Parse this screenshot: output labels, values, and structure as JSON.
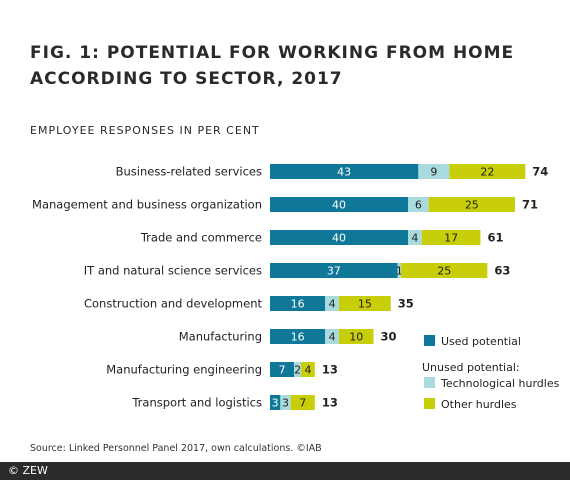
{
  "title": "FIG. 1: POTENTIAL FOR WORKING FROM HOME ACCORDING TO SECTOR, 2017",
  "subtitle": "EMPLOYEE RESPONSES IN PER CENT",
  "source": "Source: Linked Personnel Panel 2017, own calculations. ©IAB",
  "footer": "© ZEW",
  "legend": {
    "used": "Used potential",
    "unused_header": "Unused potential:",
    "tech": "Technological hurdles",
    "other": "Other hurdles"
  },
  "colors": {
    "used": "#0f7898",
    "tech": "#a9dbde",
    "other": "#c8cf0a"
  },
  "chart_data": {
    "type": "bar",
    "orientation": "horizontal",
    "stacked": true,
    "categories": [
      "Business-related services",
      "Management and business organization",
      "Trade and commerce",
      "IT and natural science services",
      "Construction and development",
      "Manufacturing",
      "Manufacturing engineering",
      "Transport and logistics"
    ],
    "series": [
      {
        "name": "Used potential",
        "values": [
          43,
          40,
          40,
          37,
          16,
          16,
          7,
          3
        ]
      },
      {
        "name": "Technological hurdles",
        "values": [
          9,
          6,
          4,
          1,
          4,
          4,
          2,
          3
        ]
      },
      {
        "name": "Other hurdles",
        "values": [
          22,
          25,
          17,
          25,
          15,
          10,
          4,
          7
        ]
      }
    ],
    "totals": [
      74,
      71,
      61,
      63,
      35,
      30,
      13,
      13
    ],
    "title": "FIG. 1: POTENTIAL FOR WORKING FROM HOME ACCORDING TO SECTOR, 2017",
    "subtitle": "EMPLOYEE RESPONSES IN PER CENT",
    "xlabel": "",
    "ylabel": "",
    "grid": false,
    "legend_position": "bottom-right"
  }
}
